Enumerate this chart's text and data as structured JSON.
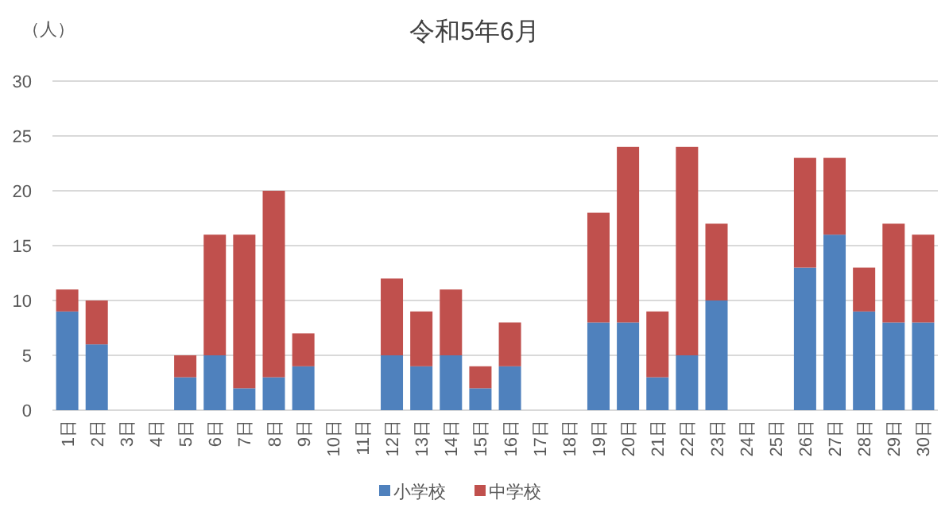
{
  "chart_data": {
    "type": "bar",
    "title": "令和5年6月",
    "ylabel": "（人）",
    "stacked": true,
    "categories": [
      "1日",
      "2日",
      "3日",
      "4日",
      "5日",
      "6日",
      "7日",
      "8日",
      "9日",
      "10日",
      "11日",
      "12日",
      "13日",
      "14日",
      "15日",
      "16日",
      "17日",
      "18日",
      "19日",
      "20日",
      "21日",
      "22日",
      "23日",
      "24日",
      "25日",
      "26日",
      "27日",
      "28日",
      "29日",
      "30日"
    ],
    "series": [
      {
        "name": "小学校",
        "color": "#4f81bd",
        "values": [
          9,
          6,
          0,
          0,
          3,
          5,
          2,
          3,
          4,
          0,
          0,
          5,
          4,
          5,
          2,
          4,
          0,
          0,
          8,
          8,
          3,
          5,
          10,
          0,
          0,
          13,
          16,
          9,
          8,
          8
        ]
      },
      {
        "name": "中学校",
        "color": "#c0504d",
        "values": [
          2,
          4,
          0,
          0,
          2,
          11,
          14,
          17,
          3,
          0,
          0,
          7,
          5,
          6,
          2,
          4,
          0,
          0,
          10,
          16,
          6,
          19,
          7,
          0,
          0,
          10,
          7,
          4,
          9,
          8
        ]
      }
    ],
    "ylim": [
      0,
      30
    ],
    "yticks": [
      0,
      5,
      10,
      15,
      20,
      25,
      30
    ],
    "grid": "y",
    "legend": "bottom"
  }
}
